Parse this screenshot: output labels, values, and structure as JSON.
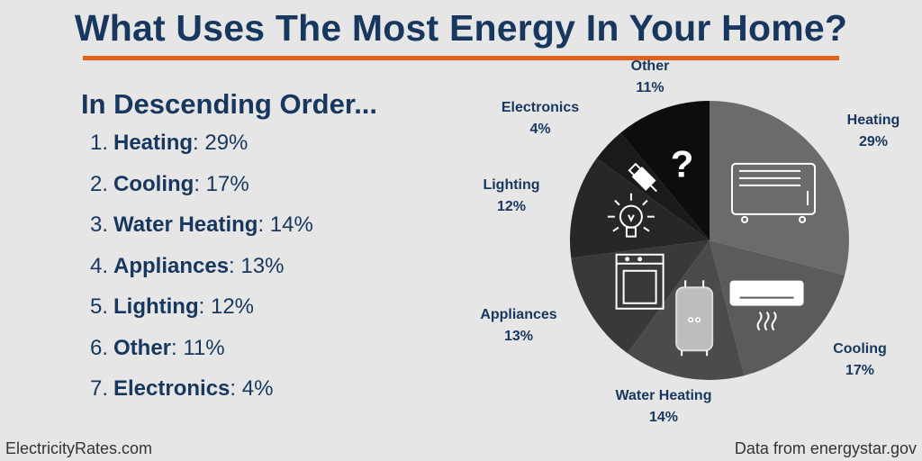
{
  "title": "What Uses The Most Energy In Your Home?",
  "subtitle": "In Descending Order...",
  "ranking": [
    {
      "num": "1.",
      "name": "Heating",
      "value": ": 29%"
    },
    {
      "num": "2.",
      "name": "Cooling",
      "value": ": 17%"
    },
    {
      "num": "3.",
      "name": "Water Heating",
      "value": ": 14%"
    },
    {
      "num": "4.",
      "name": "Appliances",
      "value": ": 13%"
    },
    {
      "num": "5.",
      "name": "Lighting",
      "value": ": 12%"
    },
    {
      "num": "6.",
      "name": "Other",
      "value": ": 11%"
    },
    {
      "num": "7.",
      "name": "Electronics",
      "value": ": 4%"
    }
  ],
  "footer": {
    "left": "ElectricityRates.com",
    "right": "Data from energystar.gov"
  },
  "chart_data": {
    "type": "pie",
    "title": "What Uses The Most Energy In Your Home?",
    "slices": [
      {
        "name": "Heating",
        "value": 29,
        "label": "29%",
        "color": "#6b6b6b",
        "icon": "space-heater-icon"
      },
      {
        "name": "Cooling",
        "value": 17,
        "label": "17%",
        "color": "#5b5b5b",
        "icon": "air-conditioner-icon"
      },
      {
        "name": "Water Heating",
        "value": 14,
        "label": "14%",
        "color": "#4b4b4b",
        "icon": "water-heater-icon"
      },
      {
        "name": "Appliances",
        "value": 13,
        "label": "13%",
        "color": "#393939",
        "icon": "dishwasher-icon"
      },
      {
        "name": "Lighting",
        "value": 12,
        "label": "12%",
        "color": "#272727",
        "icon": "light-bulb-icon"
      },
      {
        "name": "Electronics",
        "value": 4,
        "label": "4%",
        "color": "#1a1a1a",
        "icon": "usb-plug-icon"
      },
      {
        "name": "Other",
        "value": 11,
        "label": "11%",
        "color": "#0d0d0d",
        "icon": "question-mark-icon"
      }
    ],
    "legend": "none"
  }
}
